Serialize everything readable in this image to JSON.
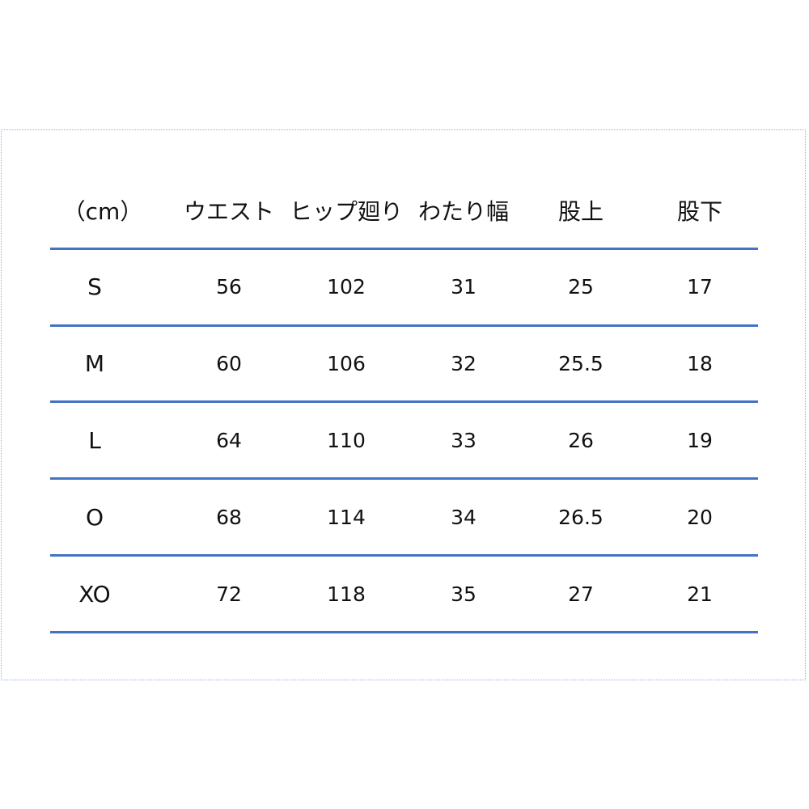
{
  "table": {
    "headers": [
      "（cm）",
      "ウエスト",
      "ヒップ廻り",
      "わたり幅",
      "股上",
      "股下"
    ],
    "rows": [
      {
        "size": "S",
        "values": [
          "56",
          "102",
          "31",
          "25",
          "17"
        ]
      },
      {
        "size": "M",
        "values": [
          "60",
          "106",
          "32",
          "25.5",
          "18"
        ]
      },
      {
        "size": "L",
        "values": [
          "64",
          "110",
          "33",
          "26",
          "19"
        ]
      },
      {
        "size": "O",
        "values": [
          "68",
          "114",
          "34",
          "26.5",
          "20"
        ]
      },
      {
        "size": "XO",
        "values": [
          "72",
          "118",
          "35",
          "27",
          "21"
        ]
      }
    ]
  },
  "colors": {
    "rule": "#4472c4",
    "frame": "#8fb0e0"
  }
}
